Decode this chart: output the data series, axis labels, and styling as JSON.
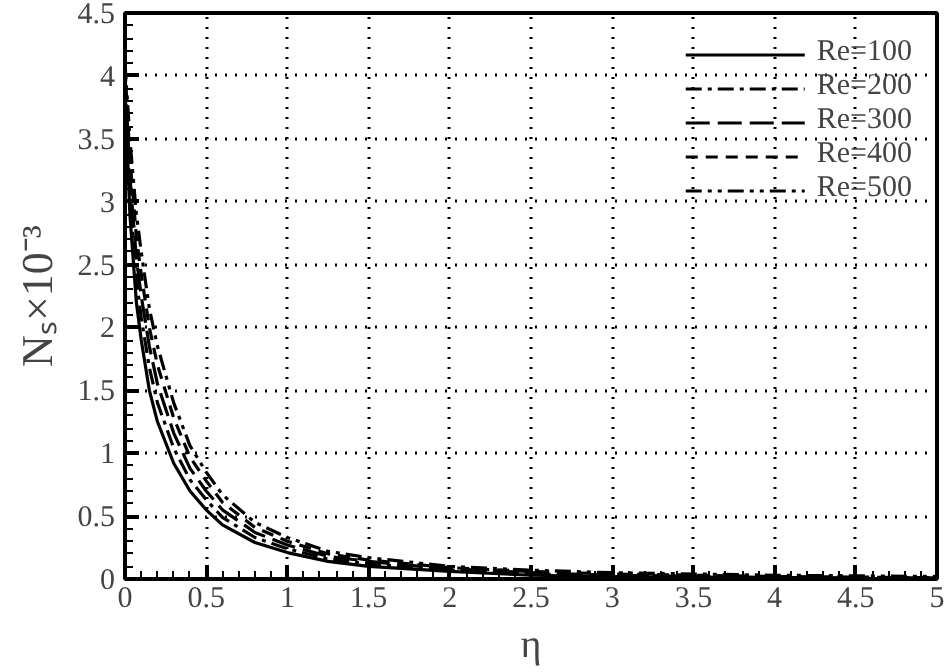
{
  "chart_data": {
    "type": "line",
    "xlabel": "η",
    "ylabel": "Nₛ×10⁻³",
    "xlim": [
      0,
      5
    ],
    "ylim": [
      0,
      4.5
    ],
    "xticks": [
      0,
      0.5,
      1,
      1.5,
      2,
      2.5,
      3,
      3.5,
      4,
      4.5,
      5
    ],
    "yticks": [
      0,
      0.5,
      1,
      1.5,
      2,
      2.5,
      3,
      3.5,
      4,
      4.5
    ],
    "grid": true,
    "legend": "top right",
    "x": [
      0,
      0.03,
      0.07,
      0.1,
      0.15,
      0.2,
      0.3,
      0.4,
      0.5,
      0.6,
      0.8,
      1,
      1.25,
      1.5,
      2,
      2.5,
      3,
      4,
      5
    ],
    "series": [
      {
        "name": "Re=100",
        "color": "#000000",
        "line_style": "solid",
        "values": [
          3.9,
          2.9,
          2.2,
          1.9,
          1.5,
          1.25,
          0.92,
          0.7,
          0.55,
          0.43,
          0.29,
          0.21,
          0.14,
          0.1,
          0.06,
          0.03,
          0.02,
          0.01,
          0.0
        ]
      },
      {
        "name": "Re=200",
        "color": "#000000",
        "line_style": "dashdot",
        "values": [
          3.95,
          3.05,
          2.38,
          2.08,
          1.68,
          1.4,
          1.04,
          0.79,
          0.63,
          0.49,
          0.33,
          0.24,
          0.16,
          0.12,
          0.07,
          0.04,
          0.03,
          0.01,
          0.0
        ]
      },
      {
        "name": "Re=300",
        "color": "#000000",
        "line_style": "longdash",
        "values": [
          4.0,
          3.2,
          2.55,
          2.25,
          1.85,
          1.55,
          1.16,
          0.88,
          0.7,
          0.55,
          0.37,
          0.27,
          0.18,
          0.14,
          0.08,
          0.05,
          0.03,
          0.01,
          0.01
        ]
      },
      {
        "name": "Re=400",
        "color": "#000000",
        "line_style": "dashed",
        "values": [
          4.05,
          3.35,
          2.72,
          2.42,
          2.0,
          1.7,
          1.28,
          0.97,
          0.78,
          0.61,
          0.41,
          0.3,
          0.2,
          0.15,
          0.09,
          0.06,
          0.04,
          0.02,
          0.01
        ]
      },
      {
        "name": "Re=500",
        "color": "#000000",
        "line_style": "dashdotdot",
        "values": [
          4.1,
          3.5,
          2.9,
          2.6,
          2.15,
          1.85,
          1.4,
          1.06,
          0.85,
          0.67,
          0.45,
          0.33,
          0.22,
          0.17,
          0.1,
          0.07,
          0.05,
          0.03,
          0.02
        ]
      }
    ]
  }
}
